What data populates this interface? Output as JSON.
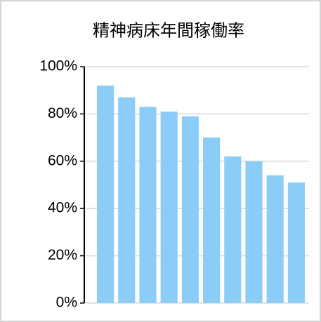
{
  "chart_data": {
    "type": "bar",
    "title": "精神病床年間稼働率",
    "categories": [
      null,
      null,
      null,
      null,
      null,
      null,
      null,
      null,
      null,
      null
    ],
    "values": [
      92,
      87,
      83,
      81,
      79,
      70,
      62,
      60,
      54,
      51
    ],
    "color": "#8ccdf7",
    "ylim": [
      0,
      100
    ],
    "yticks": [
      {
        "value": 0,
        "label": "0%"
      },
      {
        "value": 20,
        "label": "20%"
      },
      {
        "value": 40,
        "label": "40%"
      },
      {
        "value": 60,
        "label": "60%"
      },
      {
        "value": 80,
        "label": "80%"
      },
      {
        "value": 100,
        "label": "100%"
      }
    ],
    "grid": true
  }
}
